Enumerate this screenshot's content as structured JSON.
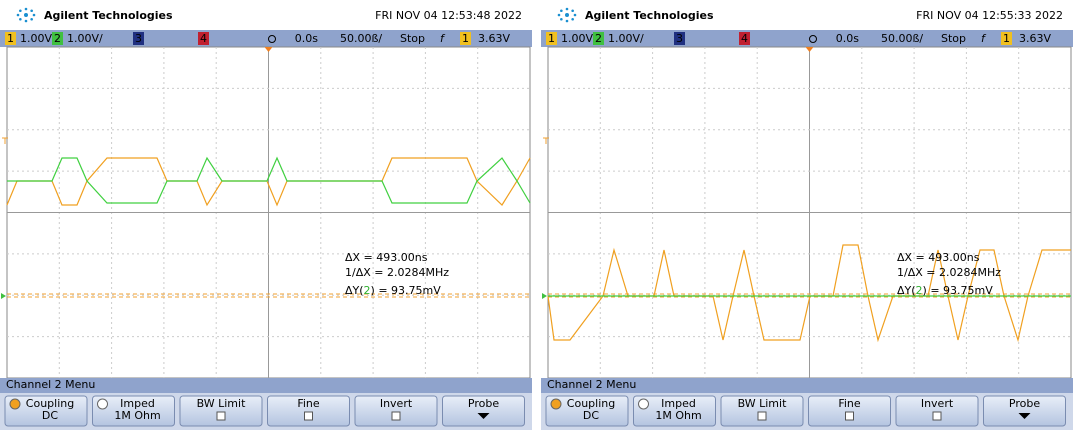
{
  "panels": [
    {
      "brand": "Agilent Technologies",
      "datetime": "FRI NOV 04 12:53:48 2022",
      "status": {
        "ch1": "1",
        "ch1_scale": "1.00V/",
        "ch2": "2",
        "ch2_scale": "1.00V/",
        "ch3": "3",
        "ch4": "4",
        "delay": "0.0s",
        "timebase": "50.00ß/",
        "mode": "Stop",
        "trigger_slope": "f",
        "trigger_source": "1",
        "trigger_level": "3.63V"
      },
      "measurements": {
        "dx": "ΔX = 493.00ns",
        "inv_dx": "1/ΔX = 2.0284MHz",
        "dy_prefix": "ΔY(",
        "dy_channel": "2",
        "dy_suffix": ") = 93.75mV"
      },
      "menu": {
        "title": "Channel 2 Menu",
        "buttons": [
          {
            "label": "Coupling",
            "value": "DC"
          },
          {
            "label": "Imped",
            "value": "1M Ohm"
          },
          {
            "label": "BW Limit"
          },
          {
            "label": "Fine"
          },
          {
            "label": "Invert"
          },
          {
            "label": "Probe"
          }
        ]
      }
    },
    {
      "brand": "Agilent Technologies",
      "datetime": "FRI NOV 04 12:55:33 2022",
      "status": {
        "ch1": "1",
        "ch1_scale": "1.00V/",
        "ch2": "2",
        "ch2_scale": "1.00V/",
        "ch3": "3",
        "ch4": "4",
        "delay": "0.0s",
        "timebase": "50.00ß/",
        "mode": "Stop",
        "trigger_slope": "f",
        "trigger_source": "1",
        "trigger_level": "3.63V"
      },
      "measurements": {
        "dx": "ΔX = 493.00ns",
        "inv_dx": "1/ΔX = 2.0284MHz",
        "dy_prefix": "ΔY(",
        "dy_channel": "2",
        "dy_suffix": ") = 93.75mV"
      },
      "menu": {
        "title": "Channel 2 Menu",
        "buttons": [
          {
            "label": "Coupling",
            "value": "DC"
          },
          {
            "label": "Imped",
            "value": "1M Ohm"
          },
          {
            "label": "BW Limit"
          },
          {
            "label": "Fine"
          },
          {
            "label": "Invert"
          },
          {
            "label": "Probe"
          }
        ]
      }
    }
  ]
}
